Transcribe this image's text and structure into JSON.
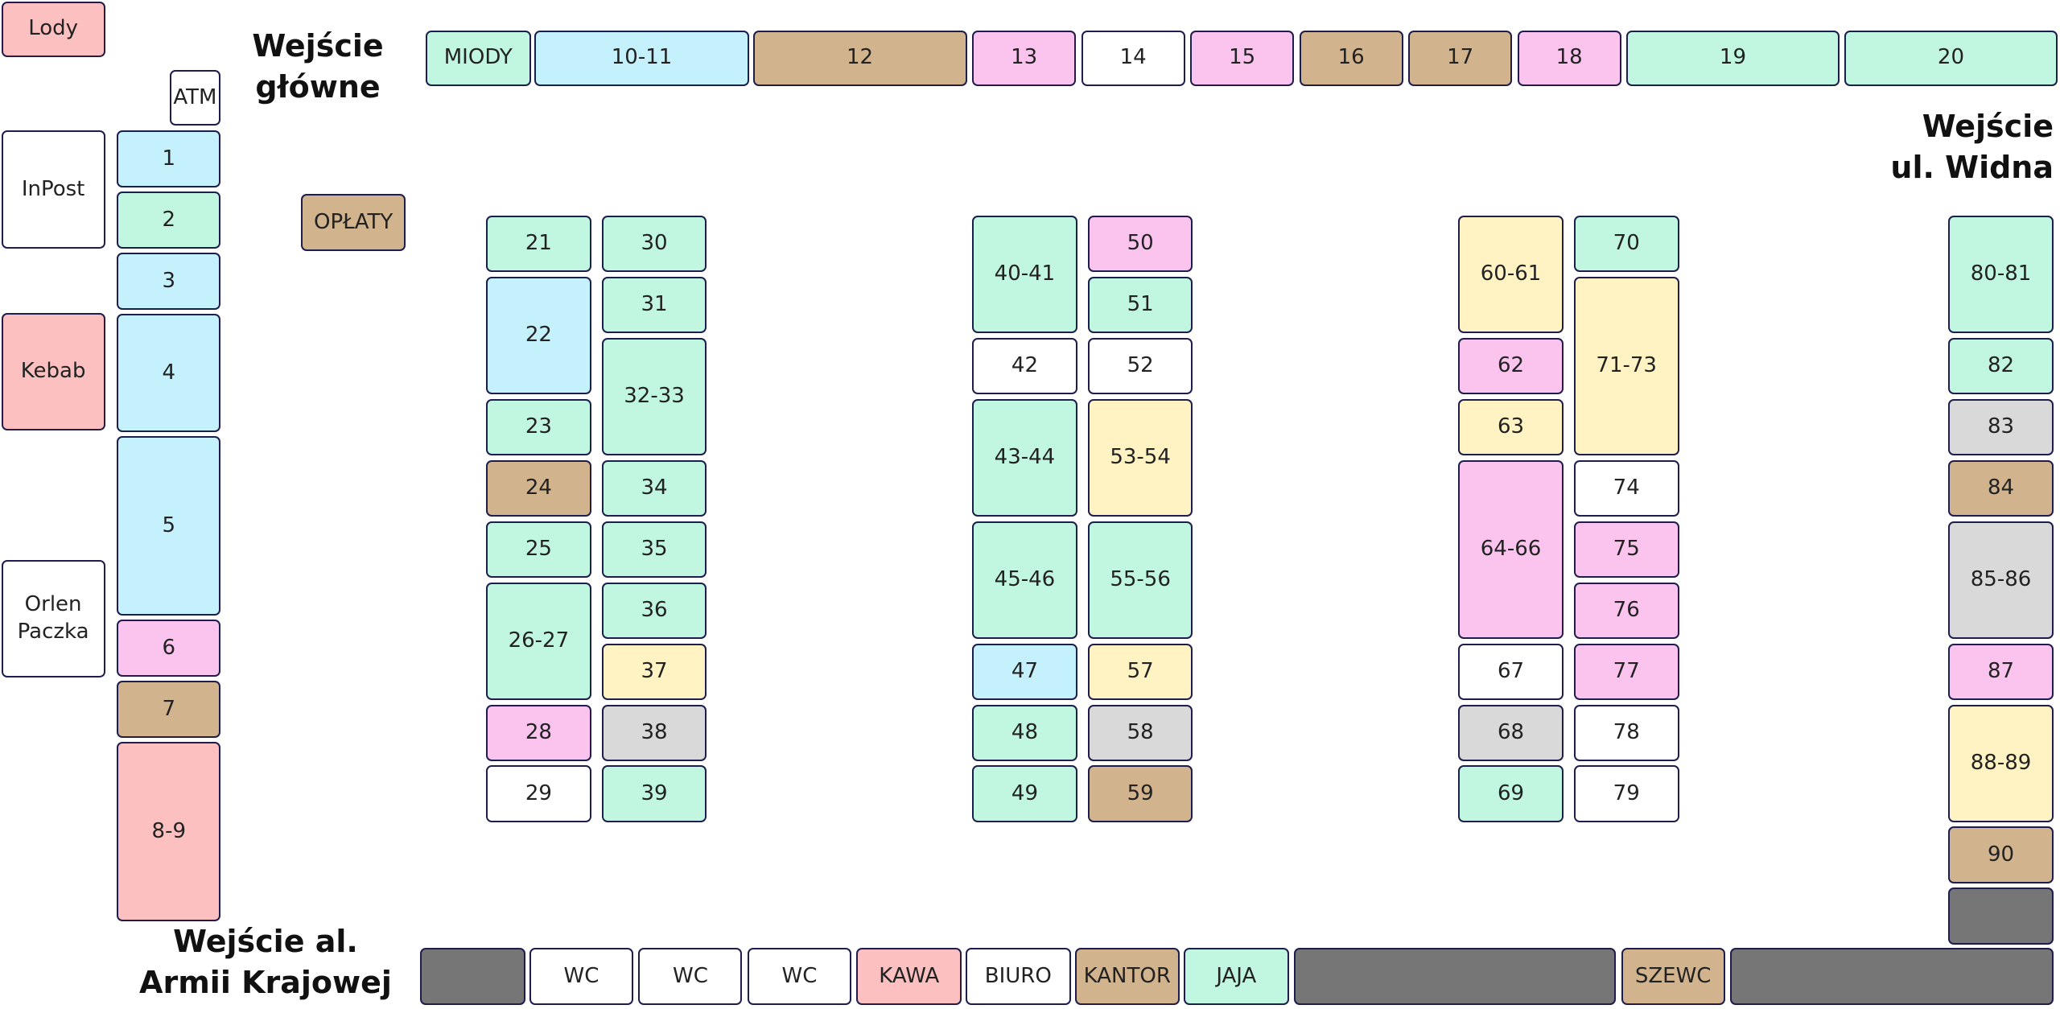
{
  "entrances": [
    "Wejście\ngłówne",
    "Wejście\nul. Widna",
    "Wejście al.\nArmii Krajowej"
  ],
  "stalls": [
    {
      "label": "Lody",
      "color": "#fcc0c0"
    },
    {
      "label": "ATM",
      "color": "#ffffff"
    },
    {
      "label": "InPost",
      "color": "#ffffff"
    },
    {
      "label": "Kebab",
      "color": "#fcc0c0"
    },
    {
      "label": "Orlen Paczka",
      "color": "#ffffff"
    },
    {
      "label": "OPŁATY",
      "color": "#d1b38d"
    },
    {
      "label": "1",
      "color": "#c4f1fb"
    },
    {
      "label": "2",
      "color": "#c1f7e0"
    },
    {
      "label": "3",
      "color": "#c4f1fb"
    },
    {
      "label": "4",
      "color": "#c4f1fb"
    },
    {
      "label": "5",
      "color": "#c4f1fb"
    },
    {
      "label": "6",
      "color": "#fbc4ee"
    },
    {
      "label": "7",
      "color": "#d1b38d"
    },
    {
      "label": "8-9",
      "color": "#fcc0c0"
    },
    {
      "label": "MIODY",
      "color": "#c1f7e0"
    },
    {
      "label": "10-11",
      "color": "#c4f1fb"
    },
    {
      "label": "12",
      "color": "#d1b38d"
    },
    {
      "label": "13",
      "color": "#fbc4ee"
    },
    {
      "label": "14",
      "color": "#ffffff"
    },
    {
      "label": "15",
      "color": "#fbc4ee"
    },
    {
      "label": "16",
      "color": "#d1b38d"
    },
    {
      "label": "17",
      "color": "#d1b38d"
    },
    {
      "label": "18",
      "color": "#fbc4ee"
    },
    {
      "label": "19",
      "color": "#c1f7e0"
    },
    {
      "label": "20",
      "color": "#c1f7e0"
    },
    {
      "label": "21",
      "color": "#c1f7e0"
    },
    {
      "label": "22",
      "color": "#c4f1fb"
    },
    {
      "label": "23",
      "color": "#c1f7e0"
    },
    {
      "label": "24",
      "color": "#d1b38d"
    },
    {
      "label": "25",
      "color": "#c1f7e0"
    },
    {
      "label": "26-27",
      "color": "#c1f7e0"
    },
    {
      "label": "28",
      "color": "#fbc4ee"
    },
    {
      "label": "29",
      "color": "#ffffff"
    },
    {
      "label": "30",
      "color": "#c1f7e0"
    },
    {
      "label": "31",
      "color": "#c1f7e0"
    },
    {
      "label": "32-33",
      "color": "#c1f7e0"
    },
    {
      "label": "34",
      "color": "#c1f7e0"
    },
    {
      "label": "35",
      "color": "#c1f7e0"
    },
    {
      "label": "36",
      "color": "#c1f7e0"
    },
    {
      "label": "37",
      "color": "#fff3c4"
    },
    {
      "label": "38",
      "color": "#d9d9d9"
    },
    {
      "label": "39",
      "color": "#c1f7e0"
    },
    {
      "label": "40-41",
      "color": "#c1f7e0"
    },
    {
      "label": "42",
      "color": "#ffffff"
    },
    {
      "label": "43-44",
      "color": "#c1f7e0"
    },
    {
      "label": "45-46",
      "color": "#c1f7e0"
    },
    {
      "label": "47",
      "color": "#c4f1fb"
    },
    {
      "label": "48",
      "color": "#c1f7e0"
    },
    {
      "label": "49",
      "color": "#c1f7e0"
    },
    {
      "label": "50",
      "color": "#fbc4ee"
    },
    {
      "label": "51",
      "color": "#c1f7e0"
    },
    {
      "label": "52",
      "color": "#ffffff"
    },
    {
      "label": "53-54",
      "color": "#fff3c4"
    },
    {
      "label": "55-56",
      "color": "#c1f7e0"
    },
    {
      "label": "57",
      "color": "#fff3c4"
    },
    {
      "label": "58",
      "color": "#d9d9d9"
    },
    {
      "label": "59",
      "color": "#d1b38d"
    },
    {
      "label": "60-61",
      "color": "#fff3c4"
    },
    {
      "label": "62",
      "color": "#fbc4ee"
    },
    {
      "label": "63",
      "color": "#fff3c4"
    },
    {
      "label": "64-66",
      "color": "#fbc4ee"
    },
    {
      "label": "67",
      "color": "#ffffff"
    },
    {
      "label": "68",
      "color": "#d9d9d9"
    },
    {
      "label": "69",
      "color": "#c1f7e0"
    },
    {
      "label": "70",
      "color": "#c1f7e0"
    },
    {
      "label": "71-73",
      "color": "#fff3c4"
    },
    {
      "label": "74",
      "color": "#ffffff"
    },
    {
      "label": "75",
      "color": "#fbc4ee"
    },
    {
      "label": "76",
      "color": "#fbc4ee"
    },
    {
      "label": "77",
      "color": "#fbc4ee"
    },
    {
      "label": "78",
      "color": "#ffffff"
    },
    {
      "label": "79",
      "color": "#ffffff"
    },
    {
      "label": "80-81",
      "color": "#c1f7e0"
    },
    {
      "label": "82",
      "color": "#c1f7e0"
    },
    {
      "label": "83",
      "color": "#d9d9d9"
    },
    {
      "label": "84",
      "color": "#d1b38d"
    },
    {
      "label": "85-86",
      "color": "#d9d9d9"
    },
    {
      "label": "87",
      "color": "#fbc4ee"
    },
    {
      "label": "88-89",
      "color": "#fff3c4"
    },
    {
      "label": "90",
      "color": "#d1b38d"
    },
    {
      "label": null,
      "color": "#767676"
    },
    {
      "label": null,
      "color": "#767676"
    },
    {
      "label": "WC",
      "color": "#ffffff"
    },
    {
      "label": "WC",
      "color": "#ffffff"
    },
    {
      "label": "WC",
      "color": "#ffffff"
    },
    {
      "label": "KAWA",
      "color": "#fcc0c0"
    },
    {
      "label": "BIURO",
      "color": "#ffffff"
    },
    {
      "label": "KANTOR",
      "color": "#d1b38d"
    },
    {
      "label": "JAJA",
      "color": "#c1f7e0"
    },
    {
      "label": null,
      "color": "#767676"
    },
    {
      "label": "SZEWC",
      "color": "#d1b38d"
    },
    {
      "label": null,
      "color": "#767676"
    }
  ]
}
